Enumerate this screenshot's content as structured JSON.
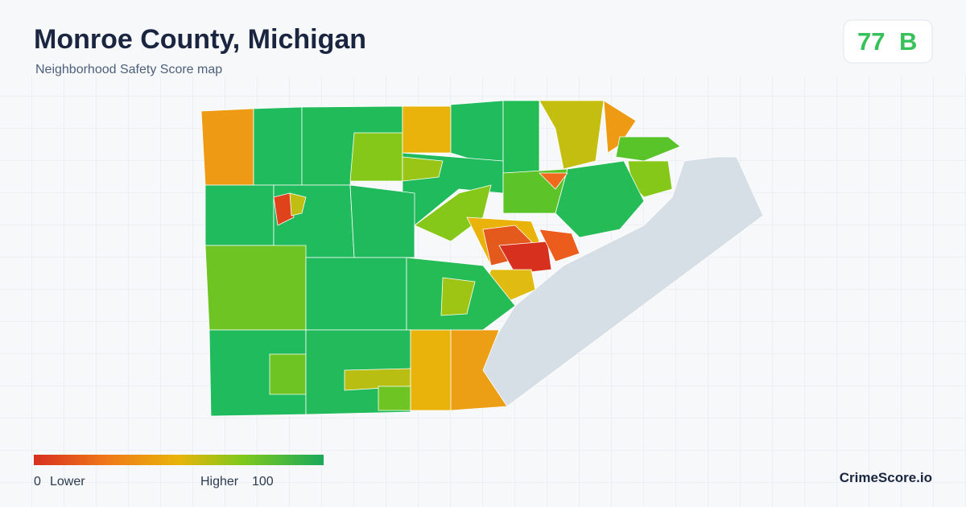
{
  "header": {
    "title": "Monroe County, Michigan",
    "subtitle": "Neighborhood Safety Score map"
  },
  "score": {
    "value": 77,
    "grade": "B"
  },
  "legend": {
    "min": 0,
    "min_label": "Lower",
    "max_label": "Higher",
    "max": 100
  },
  "brand": "CrimeScore.io"
}
